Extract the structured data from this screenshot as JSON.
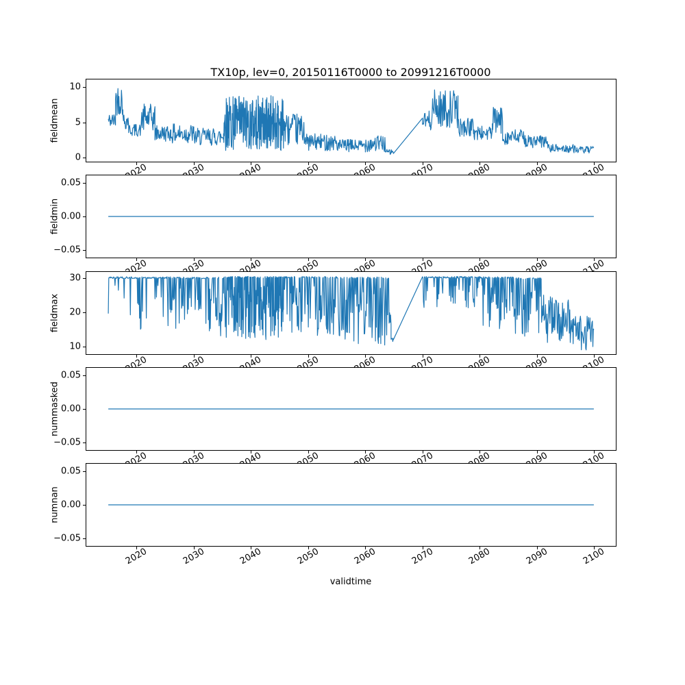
{
  "figure": {
    "title": "TX10p, lev=0, 20150116T0000 to 20991216T0000",
    "xlabel": "validtime",
    "background": "#ffffff",
    "line_color": "#1f77b4",
    "axis_color": "#000000",
    "xlim": [
      2011.2,
      2103.8
    ],
    "xticks": [
      2020,
      2030,
      2040,
      2050,
      2060,
      2070,
      2080,
      2090,
      2100
    ],
    "x_data_range": [
      2015.04,
      2099.96
    ]
  },
  "chart_data": [
    {
      "type": "line",
      "series_name": "fieldmean",
      "ylabel": "fieldmean",
      "ylim": [
        -0.55,
        11.05
      ],
      "yticks": [
        {
          "v": 0,
          "label": "0"
        },
        {
          "v": 5,
          "label": "5"
        },
        {
          "v": 10,
          "label": "10"
        }
      ],
      "seed": 42,
      "segments": [
        {
          "mode": "noise",
          "x0": 2015.04,
          "x1": 2016.3,
          "n": 15,
          "lo": 4.2,
          "hi": 6.3
        },
        {
          "mode": "noise",
          "x0": 2016.3,
          "x1": 2017.6,
          "n": 16,
          "lo": 6.0,
          "hi": 10.5
        },
        {
          "mode": "noise",
          "x0": 2017.6,
          "x1": 2018.6,
          "n": 12,
          "lo": 4.0,
          "hi": 6.5
        },
        {
          "mode": "noise",
          "x0": 2018.6,
          "x1": 2020.8,
          "n": 26,
          "lo": 3.0,
          "hi": 4.8
        },
        {
          "mode": "noise",
          "x0": 2020.8,
          "x1": 2023.2,
          "n": 29,
          "lo": 3.5,
          "hi": 7.6
        },
        {
          "mode": "noise",
          "x0": 2023.2,
          "x1": 2026.0,
          "n": 34,
          "lo": 2.3,
          "hi": 4.6
        },
        {
          "mode": "noise",
          "x0": 2026.0,
          "x1": 2030.0,
          "n": 48,
          "lo": 2.0,
          "hi": 4.8
        },
        {
          "mode": "noise",
          "x0": 2030.0,
          "x1": 2035.2,
          "n": 62,
          "lo": 1.7,
          "hi": 4.2
        },
        {
          "mode": "noise",
          "x0": 2035.2,
          "x1": 2045.8,
          "n": 250,
          "lo": 1.0,
          "hi": 8.8
        },
        {
          "mode": "noise",
          "x0": 2045.8,
          "x1": 2049.5,
          "n": 44,
          "lo": 1.8,
          "hi": 6.2
        },
        {
          "mode": "noise",
          "x0": 2049.5,
          "x1": 2055.0,
          "n": 66,
          "lo": 1.0,
          "hi": 3.4
        },
        {
          "mode": "noise",
          "x0": 2055.0,
          "x1": 2060.0,
          "n": 60,
          "lo": 0.8,
          "hi": 2.6
        },
        {
          "mode": "noise",
          "x0": 2060.0,
          "x1": 2063.5,
          "n": 42,
          "lo": 0.8,
          "hi": 3.2
        },
        {
          "mode": "noise",
          "x0": 2063.5,
          "x1": 2064.9,
          "n": 16,
          "lo": 0.4,
          "hi": 1.2
        },
        {
          "mode": "line",
          "x0": 2064.9,
          "y0": 0.6,
          "x1": 2070.0,
          "y1": 5.6
        },
        {
          "mode": "noise",
          "x0": 2070.0,
          "x1": 2071.5,
          "n": 18,
          "lo": 3.8,
          "hi": 6.6
        },
        {
          "mode": "noise",
          "x0": 2071.5,
          "x1": 2076.2,
          "n": 56,
          "lo": 4.2,
          "hi": 9.6
        },
        {
          "mode": "noise",
          "x0": 2076.2,
          "x1": 2079.0,
          "n": 33,
          "lo": 3.0,
          "hi": 5.6
        },
        {
          "mode": "noise",
          "x0": 2079.0,
          "x1": 2082.2,
          "n": 38,
          "lo": 2.4,
          "hi": 4.6
        },
        {
          "mode": "noise",
          "x0": 2082.2,
          "x1": 2084.0,
          "n": 21,
          "lo": 3.2,
          "hi": 7.2
        },
        {
          "mode": "noise",
          "x0": 2084.0,
          "x1": 2088.0,
          "n": 48,
          "lo": 1.8,
          "hi": 4.0
        },
        {
          "mode": "noise",
          "x0": 2088.0,
          "x1": 2092.0,
          "n": 48,
          "lo": 1.3,
          "hi": 3.2
        },
        {
          "mode": "noise",
          "x0": 2092.0,
          "x1": 2097.0,
          "n": 60,
          "lo": 0.7,
          "hi": 1.9
        },
        {
          "mode": "noise",
          "x0": 2097.0,
          "x1": 2099.96,
          "n": 36,
          "lo": 0.6,
          "hi": 1.6
        }
      ]
    },
    {
      "type": "line",
      "series_name": "fieldmin",
      "ylabel": "fieldmin",
      "ylim": [
        -0.0615,
        0.0615
      ],
      "yticks": [
        {
          "v": -0.05,
          "label": "−0.05"
        },
        {
          "v": 0,
          "label": "0.00"
        },
        {
          "v": 0.05,
          "label": "0.05"
        }
      ],
      "seed": 1,
      "segments": [
        {
          "mode": "const",
          "x0": 2015.04,
          "x1": 2099.96,
          "y": 0
        }
      ]
    },
    {
      "type": "line",
      "series_name": "fieldmax",
      "ylabel": "fieldmax",
      "ylim": [
        7.8,
        31.7
      ],
      "yticks": [
        {
          "v": 10,
          "label": "10"
        },
        {
          "v": 20,
          "label": "20"
        },
        {
          "v": 30,
          "label": "30"
        }
      ],
      "seed": 7,
      "segments": [
        {
          "mode": "dips",
          "x0": 2015.04,
          "x1": 2020.0,
          "n": 60,
          "lo": 19,
          "hi": 30.3,
          "p": 0.12
        },
        {
          "mode": "dips",
          "x0": 2020.0,
          "x1": 2026.0,
          "n": 72,
          "lo": 15,
          "hi": 30.3,
          "p": 0.25
        },
        {
          "mode": "dips",
          "x0": 2026.0,
          "x1": 2031.0,
          "n": 60,
          "lo": 14,
          "hi": 30.2,
          "p": 0.35
        },
        {
          "mode": "dips",
          "x0": 2031.0,
          "x1": 2035.2,
          "n": 50,
          "lo": 13,
          "hi": 30.2,
          "p": 0.45
        },
        {
          "mode": "dips",
          "x0": 2035.2,
          "x1": 2045.8,
          "n": 250,
          "lo": 12,
          "hi": 30.4,
          "p": 0.6
        },
        {
          "mode": "dips",
          "x0": 2045.8,
          "x1": 2055.0,
          "n": 110,
          "lo": 13,
          "hi": 30.4,
          "p": 0.5
        },
        {
          "mode": "dips",
          "x0": 2055.0,
          "x1": 2064.5,
          "n": 112,
          "lo": 10,
          "hi": 30.2,
          "p": 0.55
        },
        {
          "mode": "noise",
          "x0": 2064.5,
          "x1": 2064.9,
          "n": 5,
          "lo": 11,
          "hi": 13
        },
        {
          "mode": "line",
          "x0": 2064.9,
          "y0": 12,
          "x1": 2070.0,
          "y1": 30.3
        },
        {
          "mode": "dips",
          "x0": 2070.0,
          "x1": 2080.0,
          "n": 120,
          "lo": 21,
          "hi": 30.4,
          "p": 0.22
        },
        {
          "mode": "dips",
          "x0": 2080.0,
          "x1": 2086.0,
          "n": 72,
          "lo": 15,
          "hi": 30.3,
          "p": 0.38
        },
        {
          "mode": "dips",
          "x0": 2086.0,
          "x1": 2091.0,
          "n": 60,
          "lo": 13,
          "hi": 30.0,
          "p": 0.5
        },
        {
          "mode": "noise",
          "x0": 2091.0,
          "x1": 2096.0,
          "n": 60,
          "lo": 11,
          "hi": 25
        },
        {
          "mode": "noise",
          "x0": 2096.0,
          "x1": 2099.96,
          "n": 48,
          "lo": 9,
          "hi": 19
        }
      ]
    },
    {
      "type": "line",
      "series_name": "nummasked",
      "ylabel": "nummasked",
      "ylim": [
        -0.0615,
        0.0615
      ],
      "yticks": [
        {
          "v": -0.05,
          "label": "−0.05"
        },
        {
          "v": 0,
          "label": "0.00"
        },
        {
          "v": 0.05,
          "label": "0.05"
        }
      ],
      "seed": 2,
      "segments": [
        {
          "mode": "const",
          "x0": 2015.04,
          "x1": 2099.96,
          "y": 0
        }
      ]
    },
    {
      "type": "line",
      "series_name": "numnan",
      "ylabel": "numnan",
      "ylim": [
        -0.0615,
        0.0615
      ],
      "yticks": [
        {
          "v": -0.05,
          "label": "−0.05"
        },
        {
          "v": 0,
          "label": "0.00"
        },
        {
          "v": 0.05,
          "label": "0.05"
        }
      ],
      "seed": 3,
      "segments": [
        {
          "mode": "const",
          "x0": 2015.04,
          "x1": 2099.96,
          "y": 0
        }
      ]
    }
  ]
}
